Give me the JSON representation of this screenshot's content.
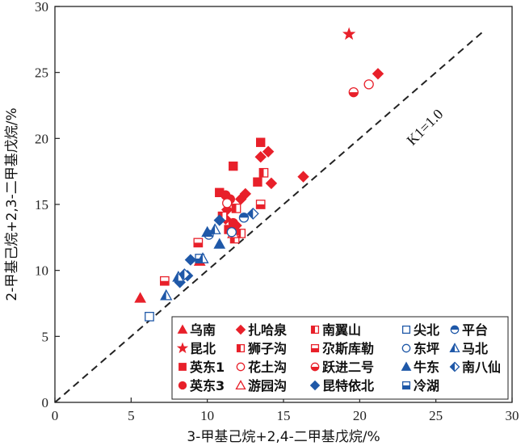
{
  "chart_data": {
    "type": "scatter",
    "xlabel": "3-甲基己烷+2,4-二甲基戊烷/%",
    "ylabel": "2-甲基己烷+2,3-二甲基戊烷/%",
    "xlim": [
      0,
      30
    ],
    "ylim": [
      0,
      30
    ],
    "xticks": [
      "0",
      "5",
      "10",
      "15",
      "20",
      "25",
      "30"
    ],
    "yticks": [
      "0",
      "5",
      "10",
      "15",
      "20",
      "25",
      "30"
    ],
    "reference_line": {
      "label": "K1=1.0",
      "slope": 1.0,
      "style": "dashed"
    },
    "legend_position": "bottom-right",
    "series": [
      {
        "name": "乌南",
        "marker": "triangle-filled",
        "color": "#e8202a",
        "points": [
          [
            5.6,
            7.9
          ],
          [
            9.5,
            10.7
          ]
        ]
      },
      {
        "name": "昆北",
        "marker": "star-filled",
        "color": "#e8202a",
        "points": [
          [
            19.3,
            27.9
          ]
        ]
      },
      {
        "name": "英东1",
        "marker": "square-filled",
        "color": "#e8202a",
        "points": [
          [
            11.7,
            17.9
          ],
          [
            13.5,
            19.7
          ],
          [
            10.8,
            15.9
          ],
          [
            11.4,
            13.1
          ],
          [
            13.3,
            16.7
          ]
        ]
      },
      {
        "name": "英东3",
        "marker": "circle-filled",
        "color": "#e8202a",
        "points": [
          [
            11.2,
            15.7
          ],
          [
            11.5,
            15.4
          ],
          [
            11.7,
            13.6
          ]
        ]
      },
      {
        "name": "扎哈泉",
        "marker": "diamond-filled",
        "color": "#e8202a",
        "points": [
          [
            21.2,
            24.9
          ],
          [
            14.0,
            19.0
          ],
          [
            13.5,
            18.6
          ],
          [
            16.3,
            17.1
          ],
          [
            14.2,
            16.6
          ],
          [
            12.5,
            15.8
          ],
          [
            12.2,
            15.4
          ],
          [
            11.3,
            14.6
          ],
          [
            11.2,
            13.9
          ],
          [
            11.9,
            13.4
          ]
        ]
      },
      {
        "name": "狮子沟",
        "marker": "square-open-half",
        "color": "#e8202a",
        "points": [
          [
            13.7,
            17.4
          ],
          [
            12.2,
            12.8
          ],
          [
            11.8,
            12.4
          ]
        ]
      },
      {
        "name": "花土沟",
        "marker": "circle-open",
        "color": "#e8202a",
        "points": [
          [
            20.6,
            24.1
          ],
          [
            11.3,
            15.1
          ]
        ]
      },
      {
        "name": "游园沟",
        "marker": "triangle-open",
        "color": "#e8202a",
        "points": [
          [
            11.7,
            12.8
          ]
        ]
      },
      {
        "name": "南翼山",
        "marker": "square-half-left",
        "color": "#e8202a",
        "points": [
          [
            11.9,
            14.7
          ],
          [
            11.0,
            14.1
          ]
        ]
      },
      {
        "name": "尕斯库勒",
        "marker": "square-half-bottom",
        "color": "#e8202a",
        "points": [
          [
            13.5,
            15.0
          ],
          [
            9.4,
            12.1
          ],
          [
            7.2,
            9.2
          ]
        ]
      },
      {
        "name": "跃进二号",
        "marker": "circle-half-bottom",
        "color": "#e8202a",
        "points": [
          [
            19.6,
            23.5
          ]
        ]
      },
      {
        "name": "昆特依北",
        "marker": "diamond-filled",
        "color": "#1f58a8",
        "points": [
          [
            8.9,
            10.8
          ],
          [
            10.8,
            13.8
          ],
          [
            8.2,
            9.1
          ],
          [
            8.7,
            9.6
          ]
        ]
      },
      {
        "name": "尖北",
        "marker": "square-open",
        "color": "#1f58a8",
        "points": [
          [
            6.2,
            6.5
          ]
        ]
      },
      {
        "name": "东坪",
        "marker": "circle-open",
        "color": "#1f58a8",
        "points": [
          [
            10.1,
            12.7
          ],
          [
            11.6,
            12.9
          ]
        ]
      },
      {
        "name": "牛东",
        "marker": "triangle-filled",
        "color": "#1f58a8",
        "points": [
          [
            10.0,
            12.9
          ],
          [
            10.8,
            12.0
          ]
        ]
      },
      {
        "name": "冷湖",
        "marker": "square-half-bottom",
        "color": "#1f58a8",
        "points": [
          [
            9.5,
            10.9
          ]
        ]
      },
      {
        "name": "平台",
        "marker": "circle-half-top",
        "color": "#1f58a8",
        "points": [
          [
            12.4,
            14.0
          ]
        ]
      },
      {
        "name": "马北",
        "marker": "triangle-half",
        "color": "#1f58a8",
        "points": [
          [
            7.3,
            8.1
          ],
          [
            10.5,
            13.1
          ],
          [
            8.1,
            9.5
          ],
          [
            9.7,
            10.9
          ]
        ]
      },
      {
        "name": "南八仙",
        "marker": "diamond-half",
        "color": "#1f58a8",
        "points": [
          [
            13.0,
            14.3
          ],
          [
            8.5,
            9.7
          ]
        ]
      }
    ],
    "legend_columns": [
      [
        "乌南",
        "昆北",
        "英东1",
        "英东3"
      ],
      [
        "扎哈泉",
        "狮子沟",
        "花土沟",
        "游园沟"
      ],
      [
        "南翼山",
        "尕斯库勒",
        "跃进二号",
        "昆特依北"
      ],
      [
        "尖北",
        "东坪",
        "牛东",
        "冷湖"
      ],
      [
        "平台",
        "马北",
        "南八仙"
      ]
    ]
  }
}
